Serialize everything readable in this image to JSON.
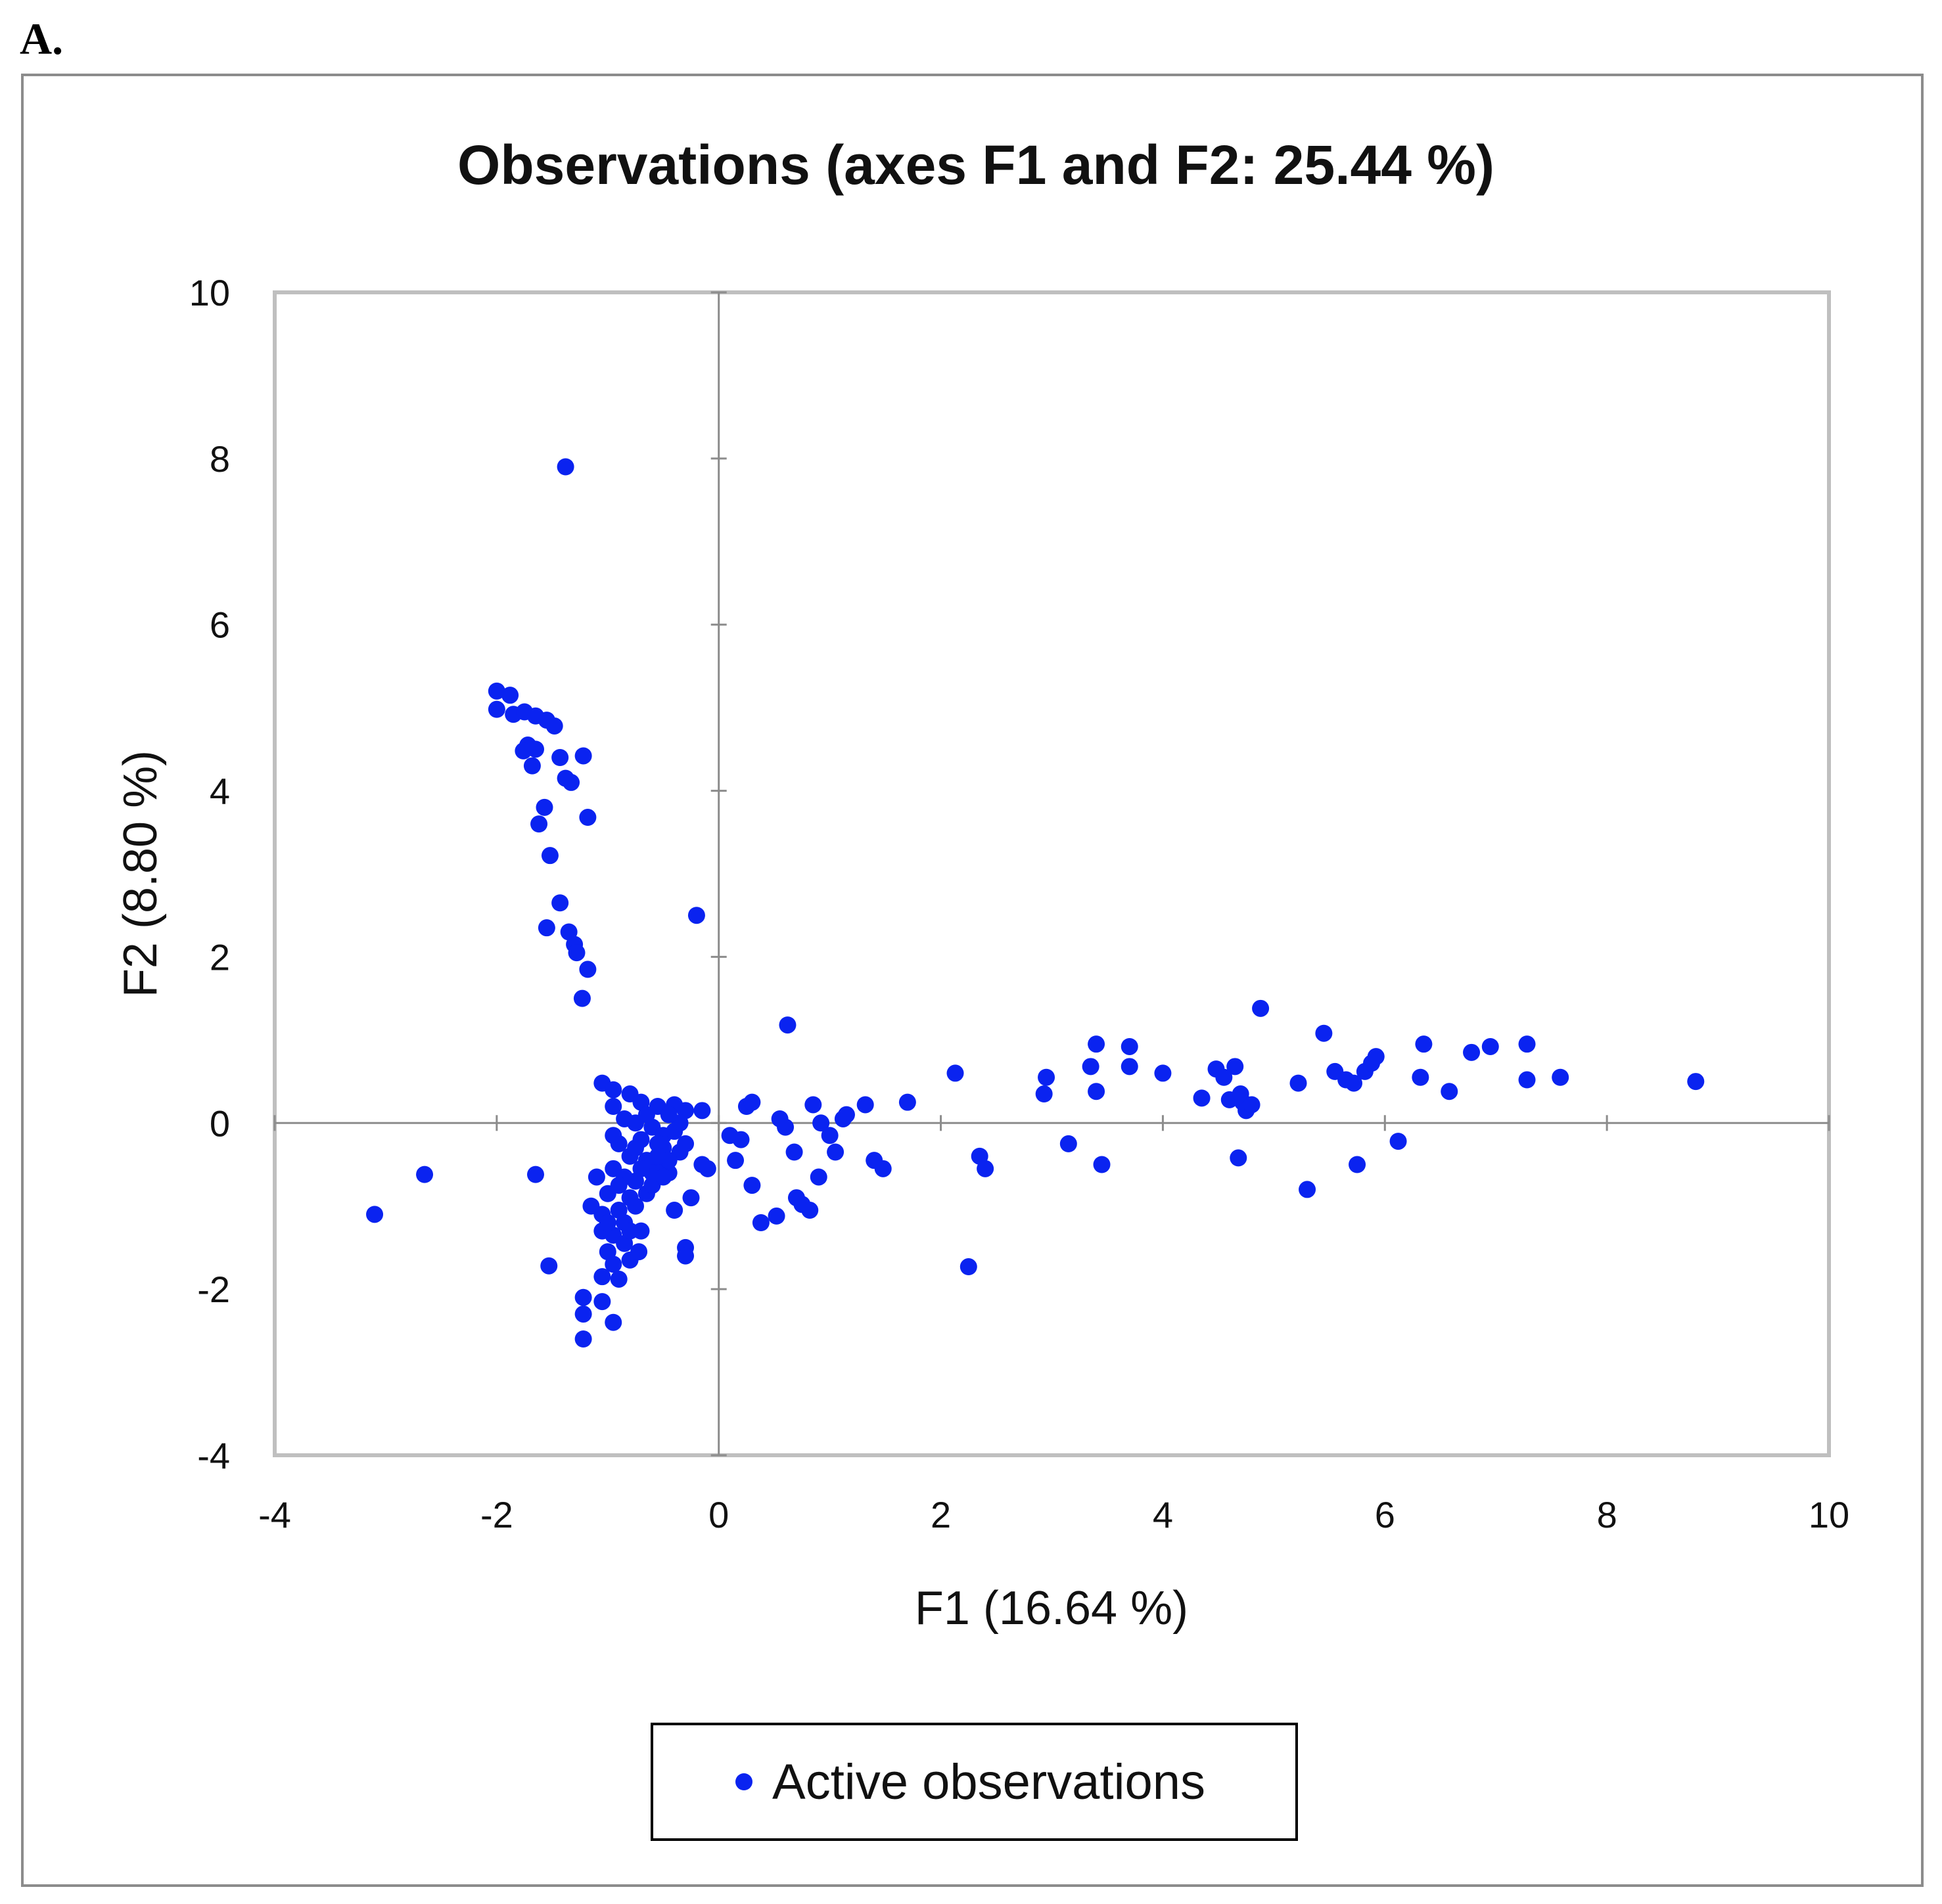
{
  "panel_label": "A.",
  "colors": {
    "marker": "#0a23f0",
    "axis": "#8c8c8c",
    "plot_border": "#bfbfbf",
    "text": "#111111"
  },
  "chart_data": {
    "type": "scatter",
    "title": "Observations (axes F1 and F2: 25.44 %)",
    "xlabel": "F1 (16.64 %)",
    "ylabel": "F2 (8.80 %)",
    "xlim": [
      -4,
      10
    ],
    "ylim": [
      -4,
      10
    ],
    "x_ticks": [
      -4,
      -2,
      0,
      2,
      4,
      6,
      8,
      10
    ],
    "y_ticks": [
      -4,
      -2,
      0,
      2,
      4,
      6,
      8,
      10
    ],
    "x_tick_labels": [
      "-4",
      "-2",
      "0",
      "2",
      "4",
      "6",
      "8",
      "10"
    ],
    "y_tick_labels": [
      "-4",
      "-2",
      "0",
      "2",
      "4",
      "6",
      "8",
      "10"
    ],
    "grid": false,
    "legend_position": "bottom",
    "series": [
      {
        "name": "Active observations",
        "points": [
          [
            -1.38,
            7.9
          ],
          [
            -2.0,
            5.2
          ],
          [
            -1.88,
            5.15
          ],
          [
            -2.0,
            4.98
          ],
          [
            -1.85,
            4.92
          ],
          [
            -1.75,
            4.95
          ],
          [
            -1.65,
            4.9
          ],
          [
            -1.55,
            4.85
          ],
          [
            -1.48,
            4.78
          ],
          [
            -1.72,
            4.55
          ],
          [
            -1.65,
            4.5
          ],
          [
            -1.76,
            4.48
          ],
          [
            -1.43,
            4.4
          ],
          [
            -1.22,
            4.42
          ],
          [
            -1.68,
            4.3
          ],
          [
            -1.38,
            4.15
          ],
          [
            -1.33,
            4.1
          ],
          [
            -1.18,
            3.68
          ],
          [
            -1.57,
            3.8
          ],
          [
            -1.62,
            3.6
          ],
          [
            -1.52,
            3.22
          ],
          [
            -1.43,
            2.65
          ],
          [
            -1.55,
            2.35
          ],
          [
            -1.35,
            2.3
          ],
          [
            -1.3,
            2.15
          ],
          [
            -1.28,
            2.05
          ],
          [
            -1.18,
            1.85
          ],
          [
            -1.23,
            1.5
          ],
          [
            -0.2,
            2.5
          ],
          [
            -3.1,
            -1.1
          ],
          [
            -2.65,
            -0.62
          ],
          [
            -1.65,
            -0.62
          ],
          [
            -1.53,
            -1.72
          ],
          [
            -1.22,
            -2.1
          ],
          [
            -1.22,
            -2.3
          ],
          [
            -1.22,
            -2.6
          ],
          [
            -1.05,
            -2.15
          ],
          [
            -0.95,
            -2.4
          ],
          [
            -0.9,
            -1.88
          ],
          [
            -1.05,
            -1.85
          ],
          [
            -0.95,
            -1.7
          ],
          [
            -0.8,
            -1.65
          ],
          [
            -0.72,
            -1.55
          ],
          [
            -0.3,
            -1.5
          ],
          [
            -0.3,
            -1.6
          ],
          [
            -1.05,
            0.48
          ],
          [
            -0.95,
            0.4
          ],
          [
            -0.8,
            0.35
          ],
          [
            -0.7,
            0.25
          ],
          [
            -0.55,
            0.2
          ],
          [
            -0.4,
            0.22
          ],
          [
            -0.3,
            0.15
          ],
          [
            -0.15,
            0.15
          ],
          [
            -0.1,
            -0.55
          ],
          [
            -0.15,
            -0.5
          ],
          [
            -0.25,
            -0.9
          ],
          [
            -0.4,
            -1.05
          ],
          [
            -0.45,
            -0.6
          ],
          [
            -0.5,
            -0.3
          ],
          [
            -0.6,
            -0.05
          ],
          [
            -0.65,
            -0.45
          ],
          [
            -0.7,
            -0.2
          ],
          [
            -0.75,
            -0.7
          ],
          [
            -0.8,
            -0.4
          ],
          [
            -0.85,
            0.05
          ],
          [
            -0.9,
            -0.25
          ],
          [
            -0.95,
            -0.55
          ],
          [
            -1.0,
            -0.85
          ],
          [
            -1.05,
            -1.1
          ],
          [
            -1.1,
            -0.65
          ],
          [
            -1.15,
            -1.0
          ],
          [
            -1.05,
            -1.3
          ],
          [
            -1.0,
            -1.55
          ],
          [
            -0.95,
            -1.35
          ],
          [
            -0.85,
            -1.2
          ],
          [
            -0.75,
            -1.0
          ],
          [
            -0.7,
            -1.3
          ],
          [
            -0.65,
            -0.85
          ],
          [
            -0.55,
            -0.55
          ],
          [
            -0.5,
            -0.15
          ],
          [
            -0.35,
            -0.35
          ],
          [
            -0.45,
            -0.45
          ],
          [
            -0.6,
            -0.6
          ],
          [
            -0.8,
            -0.9
          ],
          [
            -0.9,
            -1.05
          ],
          [
            -0.95,
            -0.15
          ],
          [
            -0.85,
            -0.65
          ],
          [
            -0.75,
            -0.3
          ],
          [
            -0.65,
            0.1
          ],
          [
            -0.55,
            -0.25
          ],
          [
            -0.4,
            -0.1
          ],
          [
            -0.3,
            -0.25
          ],
          [
            -0.35,
            0.0
          ],
          [
            -0.45,
            0.1
          ],
          [
            -0.7,
            -0.55
          ],
          [
            -0.9,
            -0.75
          ],
          [
            -1.0,
            -1.2
          ],
          [
            -0.85,
            -1.45
          ],
          [
            -0.8,
            -1.3
          ],
          [
            -0.6,
            -0.75
          ],
          [
            -0.5,
            -0.65
          ],
          [
            -0.95,
            0.2
          ],
          [
            -0.75,
            0.0
          ],
          [
            -0.55,
            -0.4
          ],
          [
            0.1,
            -0.15
          ],
          [
            0.15,
            -0.45
          ],
          [
            0.2,
            -0.2
          ],
          [
            0.25,
            0.2
          ],
          [
            0.3,
            0.25
          ],
          [
            0.3,
            -0.75
          ],
          [
            0.38,
            -1.2
          ],
          [
            0.52,
            -1.12
          ],
          [
            0.55,
            0.05
          ],
          [
            0.6,
            -0.05
          ],
          [
            0.62,
            1.18
          ],
          [
            0.68,
            -0.35
          ],
          [
            0.7,
            -0.9
          ],
          [
            0.75,
            -0.98
          ],
          [
            0.82,
            -1.05
          ],
          [
            0.85,
            0.22
          ],
          [
            0.9,
            -0.65
          ],
          [
            0.92,
            0.0
          ],
          [
            1.0,
            -0.15
          ],
          [
            1.05,
            -0.35
          ],
          [
            1.12,
            0.05
          ],
          [
            1.15,
            0.1
          ],
          [
            1.32,
            0.22
          ],
          [
            1.4,
            -0.45
          ],
          [
            1.48,
            -0.55
          ],
          [
            1.7,
            0.25
          ],
          [
            2.13,
            0.6
          ],
          [
            2.25,
            -1.73
          ],
          [
            2.35,
            -0.4
          ],
          [
            2.4,
            -0.55
          ],
          [
            2.93,
            0.35
          ],
          [
            2.95,
            0.55
          ],
          [
            3.15,
            -0.25
          ],
          [
            3.35,
            0.68
          ],
          [
            3.4,
            0.38
          ],
          [
            3.4,
            0.95
          ],
          [
            3.45,
            -0.5
          ],
          [
            3.7,
            0.92
          ],
          [
            3.7,
            0.68
          ],
          [
            4.0,
            0.6
          ],
          [
            4.35,
            0.3
          ],
          [
            4.48,
            0.65
          ],
          [
            4.55,
            0.55
          ],
          [
            4.6,
            0.28
          ],
          [
            4.65,
            0.68
          ],
          [
            4.68,
            -0.42
          ],
          [
            4.7,
            0.35
          ],
          [
            4.72,
            0.25
          ],
          [
            4.75,
            0.15
          ],
          [
            4.8,
            0.22
          ],
          [
            4.88,
            1.38
          ],
          [
            5.22,
            0.48
          ],
          [
            5.3,
            -0.8
          ],
          [
            5.45,
            1.08
          ],
          [
            5.55,
            0.62
          ],
          [
            5.65,
            0.52
          ],
          [
            5.72,
            0.48
          ],
          [
            5.75,
            -0.5
          ],
          [
            5.82,
            0.62
          ],
          [
            5.88,
            0.72
          ],
          [
            5.92,
            0.8
          ],
          [
            6.12,
            -0.22
          ],
          [
            6.32,
            0.55
          ],
          [
            6.35,
            0.95
          ],
          [
            6.58,
            0.38
          ],
          [
            6.78,
            0.85
          ],
          [
            6.95,
            0.92
          ],
          [
            7.28,
            0.52
          ],
          [
            7.28,
            0.95
          ],
          [
            7.58,
            0.55
          ],
          [
            8.8,
            0.5
          ]
        ]
      }
    ]
  }
}
